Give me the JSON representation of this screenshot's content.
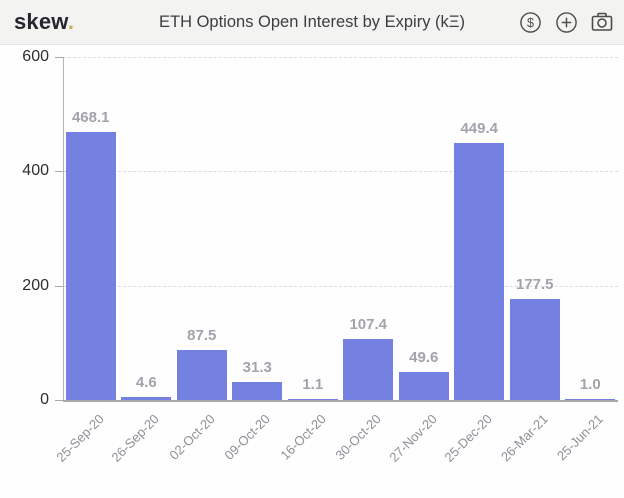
{
  "header": {
    "logo_text": "skew",
    "logo_dot": ".",
    "title": "ETH Options Open Interest by Expiry (kΞ)",
    "icons": [
      {
        "name": "currency-dollar-icon",
        "label": "currency toggle"
      },
      {
        "name": "plus-circle-icon",
        "label": "add"
      },
      {
        "name": "camera-icon",
        "label": "snapshot"
      }
    ]
  },
  "colors": {
    "header_bg": "#f3f3f1",
    "logo_dot": "#cda74b",
    "bar": "#7581e0",
    "value_label": "#a2a3ab",
    "x_label": "#8f9098",
    "y_label": "#2e2e32",
    "grid": "#dcdcde",
    "axis": "#a8a8ac",
    "icon": "#4c4c4c"
  },
  "chart_data": {
    "type": "bar",
    "title": "ETH Options Open Interest by Expiry (kΞ)",
    "xlabel": "",
    "ylabel": "",
    "categories": [
      "25-Sep-20",
      "26-Sep-20",
      "02-Oct-20",
      "09-Oct-20",
      "16-Oct-20",
      "30-Oct-20",
      "27-Nov-20",
      "25-Dec-20",
      "26-Mar-21",
      "25-Jun-21"
    ],
    "values": [
      468.1,
      4.6,
      87.5,
      31.3,
      1.1,
      107.4,
      49.6,
      449.4,
      177.5,
      1.0
    ],
    "value_labels": [
      "468.1",
      "4.6",
      "87.5",
      "31.3",
      "1.1",
      "107.4",
      "49.6",
      "449.4",
      "177.5",
      "1.0"
    ],
    "ylim": [
      0,
      600
    ],
    "yticks": [
      0,
      200,
      400,
      600
    ],
    "grid": true,
    "grid_style": "dashed",
    "legend_position": "none",
    "bar_color": "#7581e0"
  }
}
